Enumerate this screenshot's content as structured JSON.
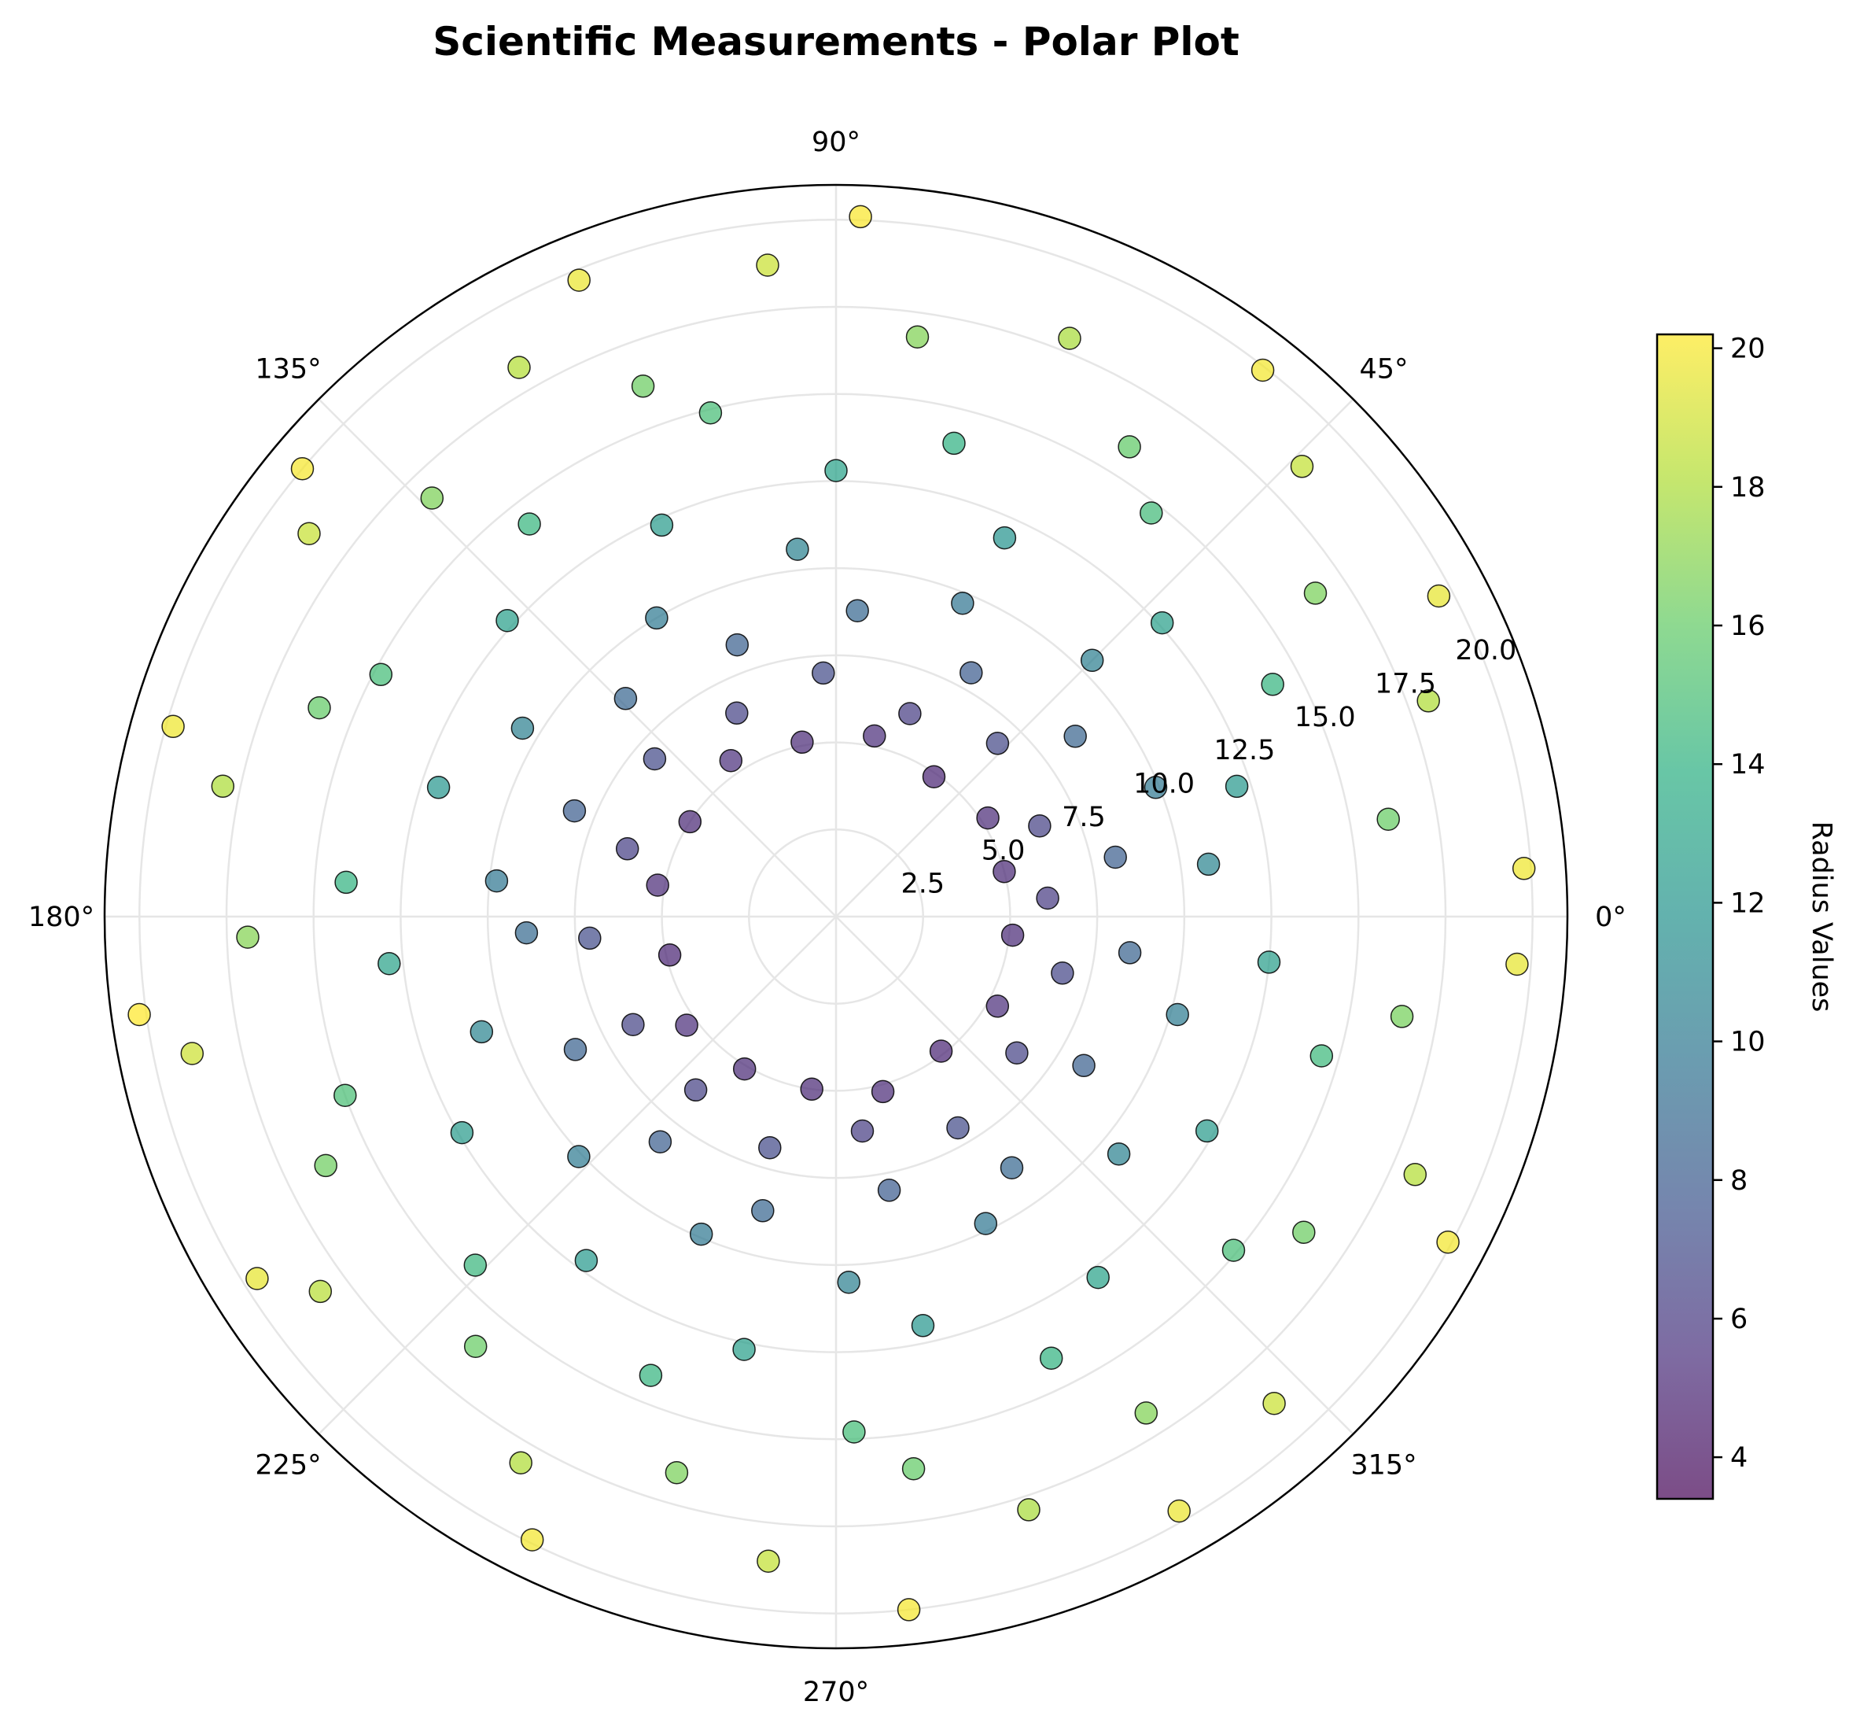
{
  "chart_data": {
    "type": "scatter",
    "projection": "polar",
    "title": "Scientific Measurements - Polar Plot",
    "theta_ticks": [
      "0°",
      "45°",
      "90°",
      "135°",
      "180°",
      "225°",
      "270°",
      "315°"
    ],
    "theta_tick_values_deg": [
      0,
      45,
      90,
      135,
      180,
      225,
      270,
      315
    ],
    "r_ticks": [
      "2.5",
      "5.0",
      "7.5",
      "10.0",
      "12.5",
      "15.0",
      "17.5",
      "20.0"
    ],
    "r_tick_values": [
      2.5,
      5.0,
      7.5,
      10.0,
      12.5,
      15.0,
      17.5,
      20.0
    ],
    "rlim": [
      0,
      21
    ],
    "grid": true,
    "colormap": "viridis",
    "marker_alpha": 0.7,
    "colorbar": {
      "label": "Radius Values",
      "range": [
        3.4,
        20.2
      ],
      "ticks": [
        "4",
        "6",
        "8",
        "10",
        "12",
        "14",
        "16",
        "18",
        "20"
      ],
      "tick_values": [
        4,
        6,
        8,
        10,
        12,
        14,
        16,
        18,
        20
      ]
    },
    "points": [
      {
        "theta": 15,
        "r": 5.0
      },
      {
        "theta": 33,
        "r": 5.2
      },
      {
        "theta": 55,
        "r": 4.9
      },
      {
        "theta": 78,
        "r": 5.3
      },
      {
        "theta": 101,
        "r": 5.1
      },
      {
        "theta": 124,
        "r": 5.4
      },
      {
        "theta": 147,
        "r": 5.0
      },
      {
        "theta": 170,
        "r": 5.2
      },
      {
        "theta": 193,
        "r": 4.9
      },
      {
        "theta": 216,
        "r": 5.3
      },
      {
        "theta": 239,
        "r": 5.1
      },
      {
        "theta": 262,
        "r": 5.0
      },
      {
        "theta": 285,
        "r": 5.2
      },
      {
        "theta": 308,
        "r": 4.9
      },
      {
        "theta": 331,
        "r": 5.3
      },
      {
        "theta": 354,
        "r": 5.1
      },
      {
        "theta": 24,
        "r": 6.4
      },
      {
        "theta": 47,
        "r": 6.8
      },
      {
        "theta": 70,
        "r": 6.2
      },
      {
        "theta": 93,
        "r": 7.0
      },
      {
        "theta": 116,
        "r": 6.5
      },
      {
        "theta": 139,
        "r": 6.9
      },
      {
        "theta": 162,
        "r": 6.3
      },
      {
        "theta": 185,
        "r": 7.1
      },
      {
        "theta": 208,
        "r": 6.6
      },
      {
        "theta": 231,
        "r": 6.4
      },
      {
        "theta": 254,
        "r": 6.9
      },
      {
        "theta": 277,
        "r": 6.2
      },
      {
        "theta": 300,
        "r": 7.0
      },
      {
        "theta": 323,
        "r": 6.5
      },
      {
        "theta": 346,
        "r": 6.7
      },
      {
        "theta": 5,
        "r": 6.1
      },
      {
        "theta": 12,
        "r": 8.2
      },
      {
        "theta": 37,
        "r": 8.6
      },
      {
        "theta": 61,
        "r": 8.0
      },
      {
        "theta": 86,
        "r": 8.8
      },
      {
        "theta": 110,
        "r": 8.3
      },
      {
        "theta": 134,
        "r": 8.7
      },
      {
        "theta": 158,
        "r": 8.1
      },
      {
        "theta": 183,
        "r": 8.9
      },
      {
        "theta": 207,
        "r": 8.4
      },
      {
        "theta": 232,
        "r": 8.2
      },
      {
        "theta": 256,
        "r": 8.7
      },
      {
        "theta": 281,
        "r": 8.0
      },
      {
        "theta": 305,
        "r": 8.8
      },
      {
        "theta": 329,
        "r": 8.3
      },
      {
        "theta": 353,
        "r": 8.5
      },
      {
        "theta": 22,
        "r": 9.9
      },
      {
        "theta": 45,
        "r": 10.4
      },
      {
        "theta": 68,
        "r": 9.7
      },
      {
        "theta": 96,
        "r": 10.6
      },
      {
        "theta": 121,
        "r": 10.0
      },
      {
        "theta": 149,
        "r": 10.5
      },
      {
        "theta": 174,
        "r": 9.8
      },
      {
        "theta": 198,
        "r": 10.7
      },
      {
        "theta": 223,
        "r": 10.1
      },
      {
        "theta": 247,
        "r": 9.9
      },
      {
        "theta": 272,
        "r": 10.5
      },
      {
        "theta": 296,
        "r": 9.8
      },
      {
        "theta": 320,
        "r": 10.6
      },
      {
        "theta": 344,
        "r": 10.2
      },
      {
        "theta": 8,
        "r": 10.8
      },
      {
        "theta": 18,
        "r": 12.1
      },
      {
        "theta": 42,
        "r": 12.6
      },
      {
        "theta": 66,
        "r": 11.9
      },
      {
        "theta": 90,
        "r": 12.8
      },
      {
        "theta": 114,
        "r": 12.3
      },
      {
        "theta": 138,
        "r": 12.7
      },
      {
        "theta": 162,
        "r": 12.0
      },
      {
        "theta": 186,
        "r": 12.9
      },
      {
        "theta": 210,
        "r": 12.4
      },
      {
        "theta": 234,
        "r": 12.2
      },
      {
        "theta": 258,
        "r": 12.7
      },
      {
        "theta": 282,
        "r": 12.0
      },
      {
        "theta": 306,
        "r": 12.8
      },
      {
        "theta": 330,
        "r": 12.3
      },
      {
        "theta": 354,
        "r": 12.5
      },
      {
        "theta": 28,
        "r": 14.2
      },
      {
        "theta": 52,
        "r": 14.7
      },
      {
        "theta": 76,
        "r": 14.0
      },
      {
        "theta": 104,
        "r": 14.9
      },
      {
        "theta": 128,
        "r": 14.3
      },
      {
        "theta": 152,
        "r": 14.8
      },
      {
        "theta": 176,
        "r": 14.1
      },
      {
        "theta": 200,
        "r": 15.0
      },
      {
        "theta": 224,
        "r": 14.4
      },
      {
        "theta": 248,
        "r": 14.2
      },
      {
        "theta": 272,
        "r": 14.8
      },
      {
        "theta": 296,
        "r": 14.1
      },
      {
        "theta": 320,
        "r": 14.9
      },
      {
        "theta": 344,
        "r": 14.5
      },
      {
        "theta": 10,
        "r": 16.1
      },
      {
        "theta": 34,
        "r": 16.6
      },
      {
        "theta": 58,
        "r": 15.9
      },
      {
        "theta": 82,
        "r": 16.8
      },
      {
        "theta": 110,
        "r": 16.2
      },
      {
        "theta": 134,
        "r": 16.7
      },
      {
        "theta": 158,
        "r": 16.0
      },
      {
        "theta": 182,
        "r": 16.9
      },
      {
        "theta": 206,
        "r": 16.3
      },
      {
        "theta": 230,
        "r": 16.1
      },
      {
        "theta": 254,
        "r": 16.6
      },
      {
        "theta": 278,
        "r": 16.0
      },
      {
        "theta": 302,
        "r": 16.8
      },
      {
        "theta": 326,
        "r": 16.2
      },
      {
        "theta": 350,
        "r": 16.5
      },
      {
        "theta": 20,
        "r": 18.1
      },
      {
        "theta": 44,
        "r": 18.6
      },
      {
        "theta": 68,
        "r": 17.9
      },
      {
        "theta": 96,
        "r": 18.8
      },
      {
        "theta": 120,
        "r": 18.2
      },
      {
        "theta": 144,
        "r": 18.7
      },
      {
        "theta": 168,
        "r": 18.0
      },
      {
        "theta": 192,
        "r": 18.9
      },
      {
        "theta": 216,
        "r": 18.3
      },
      {
        "theta": 240,
        "r": 18.1
      },
      {
        "theta": 264,
        "r": 18.6
      },
      {
        "theta": 288,
        "r": 17.9
      },
      {
        "theta": 312,
        "r": 18.8
      },
      {
        "theta": 336,
        "r": 18.2
      },
      {
        "theta": 4,
        "r": 19.8
      },
      {
        "theta": 28,
        "r": 19.6
      },
      {
        "theta": 52,
        "r": 19.9
      },
      {
        "theta": 88,
        "r": 20.1
      },
      {
        "theta": 112,
        "r": 19.7
      },
      {
        "theta": 140,
        "r": 20.0
      },
      {
        "theta": 164,
        "r": 19.8
      },
      {
        "theta": 188,
        "r": 20.2
      },
      {
        "theta": 212,
        "r": 19.6
      },
      {
        "theta": 244,
        "r": 19.9
      },
      {
        "theta": 276,
        "r": 20.0
      },
      {
        "theta": 300,
        "r": 19.7
      },
      {
        "theta": 332,
        "r": 19.9
      },
      {
        "theta": 356,
        "r": 19.6
      }
    ]
  }
}
